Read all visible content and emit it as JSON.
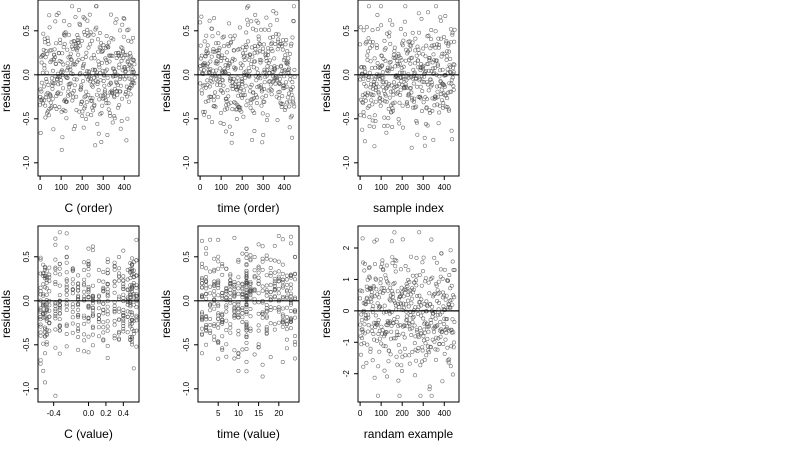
{
  "chart_data": [
    {
      "type": "scatter",
      "xlabel": "C (order)",
      "ylabel": "residuals",
      "xlim": [
        -10,
        470
      ],
      "ylim": [
        -1.15,
        0.85
      ],
      "xticks": [
        0,
        100,
        200,
        300,
        400
      ],
      "yticks": [
        -1.0,
        -0.5,
        0.0,
        0.5
      ],
      "xtick_labels": [
        "0",
        "100",
        "200",
        "300",
        "400"
      ],
      "ytick_labels": [
        "-1.0",
        "-0.5",
        "0.0",
        "0.5"
      ],
      "reference_line_y": 0,
      "grid": false,
      "n_points": 450,
      "generator": {
        "kind": "index",
        "seed": 11,
        "sd": 0.3,
        "clamp": [
          -1.08,
          0.78
        ]
      }
    },
    {
      "type": "scatter",
      "xlabel": "time (order)",
      "ylabel": "residuals",
      "xlim": [
        -10,
        470
      ],
      "ylim": [
        -1.15,
        0.85
      ],
      "xticks": [
        0,
        100,
        200,
        300,
        400
      ],
      "yticks": [
        -1.0,
        -0.5,
        0.0,
        0.5
      ],
      "xtick_labels": [
        "0",
        "100",
        "200",
        "300",
        "400"
      ],
      "ytick_labels": [
        "-1.0",
        "-0.5",
        "0.0",
        "0.5"
      ],
      "reference_line_y": 0,
      "grid": false,
      "n_points": 450,
      "generator": {
        "kind": "index",
        "seed": 23,
        "sd": 0.3,
        "clamp": [
          -1.08,
          0.78
        ]
      }
    },
    {
      "type": "scatter",
      "xlabel": "sample index",
      "ylabel": "residuals",
      "xlim": [
        -10,
        470
      ],
      "ylim": [
        -1.15,
        0.85
      ],
      "xticks": [
        0,
        100,
        200,
        300,
        400
      ],
      "yticks": [
        -1.0,
        -0.5,
        0.0,
        0.5
      ],
      "xtick_labels": [
        "0",
        "100",
        "200",
        "300",
        "400"
      ],
      "ytick_labels": [
        "-1.0",
        "-0.5",
        "0.0",
        "0.5"
      ],
      "reference_line_y": 0,
      "grid": false,
      "n_points": 450,
      "generator": {
        "kind": "index",
        "seed": 37,
        "sd": 0.3,
        "clamp": [
          -1.08,
          0.78
        ]
      }
    },
    {
      "type": "scatter",
      "xlabel": "C (value)",
      "ylabel": "residuals",
      "xlim": [
        -0.58,
        0.58
      ],
      "ylim": [
        -1.15,
        0.85
      ],
      "xticks": [
        -0.4,
        0.0,
        0.2,
        0.4
      ],
      "yticks": [
        -1.0,
        -0.5,
        0.0,
        0.5
      ],
      "xtick_labels": [
        "-0.4",
        "0.0",
        "0.2",
        "0.4"
      ],
      "ytick_labels": [
        "-1.0",
        "-0.5",
        "0.0",
        "0.5"
      ],
      "reference_line_y": 0,
      "grid": false,
      "n_points": 450,
      "generator": {
        "kind": "levels",
        "seed": 41,
        "sd": 0.3,
        "clamp": [
          -1.08,
          0.78
        ],
        "levels": [
          -0.55,
          -0.52,
          -0.5,
          -0.48,
          -0.45,
          -0.38,
          -0.33,
          -0.25,
          -0.18,
          -0.12,
          -0.05,
          0.0,
          0.05,
          0.12,
          0.17,
          0.22,
          0.3,
          0.35,
          0.4,
          0.45,
          0.48,
          0.5,
          0.52,
          0.55
        ]
      }
    },
    {
      "type": "scatter",
      "xlabel": "time (value)",
      "ylabel": "residuals",
      "xlim": [
        0,
        25
      ],
      "ylim": [
        -1.15,
        0.85
      ],
      "xticks": [
        5,
        10,
        15,
        20
      ],
      "yticks": [
        -1.0,
        -0.5,
        0.0,
        0.5
      ],
      "xtick_labels": [
        "5",
        "10",
        "15",
        "20"
      ],
      "ytick_labels": [
        "-1.0",
        "-0.5",
        "0.0",
        "0.5"
      ],
      "reference_line_y": 0,
      "grid": false,
      "n_points": 450,
      "generator": {
        "kind": "levels",
        "seed": 53,
        "sd": 0.3,
        "clamp": [
          -1.08,
          0.78
        ],
        "levels": [
          1,
          2,
          3,
          4,
          5,
          6,
          7,
          8,
          9,
          10,
          11,
          12,
          12,
          12,
          13,
          14,
          15,
          16,
          17,
          18,
          19,
          20,
          21,
          22,
          23,
          24
        ]
      }
    },
    {
      "type": "scatter",
      "xlabel": "randam example",
      "ylabel": "residuals",
      "xlim": [
        -10,
        470
      ],
      "ylim": [
        -2.9,
        2.7
      ],
      "xticks": [
        0,
        100,
        200,
        300,
        400
      ],
      "yticks": [
        -2,
        -1,
        0,
        1,
        2
      ],
      "xtick_labels": [
        "0",
        "100",
        "200",
        "300",
        "400"
      ],
      "ytick_labels": [
        "-2",
        "-1",
        "0",
        "1",
        "2"
      ],
      "reference_line_y": 0,
      "grid": false,
      "n_points": 450,
      "generator": {
        "kind": "index",
        "seed": 71,
        "sd": 1.0,
        "clamp": [
          -2.7,
          2.5
        ]
      }
    }
  ],
  "colors": {
    "points": "#444444",
    "axes": "#000000",
    "background": "#ffffff"
  }
}
